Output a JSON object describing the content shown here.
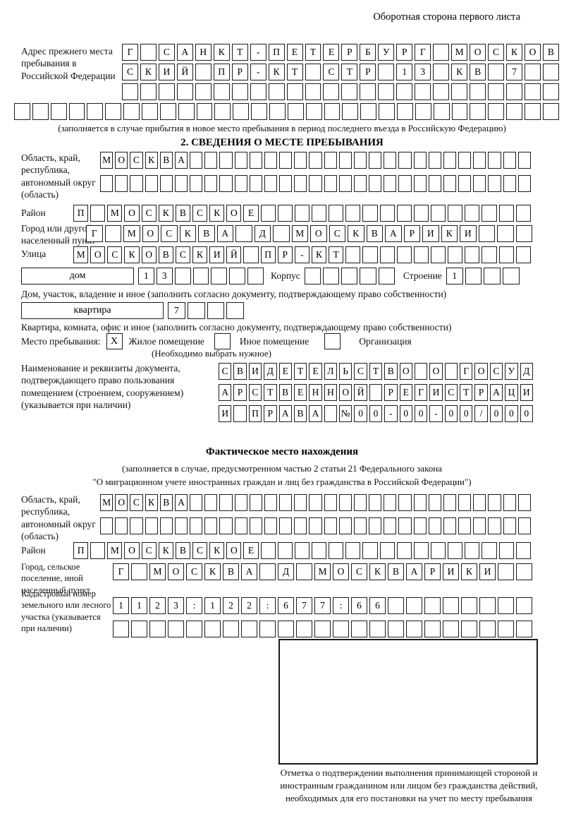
{
  "header": "Оборотная сторона первого листа",
  "prev_address": {
    "label": "Адрес прежнего места пребывания в Российской Федерации",
    "row1": [
      "Г",
      "",
      "С",
      "А",
      "Н",
      "К",
      "Т",
      "-",
      "П",
      "Е",
      "Т",
      "Е",
      "Р",
      "Б",
      "У",
      "Р",
      "Г",
      "",
      "М",
      "О",
      "С",
      "К",
      "О",
      "В"
    ],
    "row2": [
      "С",
      "К",
      "И",
      "Й",
      "",
      "П",
      "Р",
      "-",
      "К",
      "Т",
      "",
      "С",
      "Т",
      "Р",
      "",
      "1",
      "3",
      "",
      "К",
      "В",
      "",
      "7",
      "",
      ""
    ],
    "row3": 24,
    "row4": 30,
    "note": "(заполняется в случае прибытия в новое место пребывания в период последнего въезда в Российскую Федерацию)"
  },
  "section2": {
    "title": "2. СВЕДЕНИЯ О МЕСТЕ ПРЕБЫВАНИЯ",
    "region": {
      "label": "Область, край, республика, автономный округ (область)",
      "row1": [
        "М",
        "О",
        "С",
        "К",
        "В",
        "А",
        "",
        "",
        "",
        "",
        "",
        "",
        "",
        "",
        "",
        "",
        "",
        "",
        "",
        "",
        "",
        "",
        "",
        "",
        "",
        "",
        "",
        "",
        ""
      ],
      "row2": 29
    },
    "district": {
      "label": "Район",
      "row": [
        "П",
        "",
        "М",
        "О",
        "С",
        "К",
        "В",
        "С",
        "К",
        "О",
        "Е",
        "",
        "",
        "",
        "",
        "",
        "",
        "",
        "",
        "",
        "",
        "",
        "",
        "",
        "",
        "",
        ""
      ]
    },
    "city": {
      "label": "Город или другой населенный пункт",
      "row": [
        "Г",
        "",
        "М",
        "О",
        "С",
        "К",
        "В",
        "А",
        "",
        "Д",
        "",
        "М",
        "О",
        "С",
        "К",
        "В",
        "А",
        "Р",
        "И",
        "К",
        "И",
        "",
        "",
        ""
      ]
    },
    "street": {
      "label": "Улица",
      "row": [
        "М",
        "О",
        "С",
        "К",
        "О",
        "В",
        "С",
        "К",
        "И",
        "Й",
        "",
        "П",
        "Р",
        "-",
        "К",
        "Т",
        "",
        "",
        "",
        "",
        "",
        "",
        "",
        "",
        "",
        "",
        ""
      ]
    },
    "house": {
      "box_label": "дом",
      "cells": [
        "1",
        "3",
        "",
        "",
        "",
        "",
        ""
      ],
      "korpus_label": "Корпус",
      "korpus_cells": 5,
      "stroenie_label": "Строение",
      "stroenie_cells": [
        "1",
        "",
        "",
        ""
      ],
      "note": "Дом, участок, владение и иное (заполнить согласно документу, подтверждающему право собственности)"
    },
    "apartment": {
      "box_label": "квартира",
      "cells": [
        "7",
        "",
        "",
        ""
      ],
      "note": "Квартира, комната, офис и иное (заполнить согласно документу, подтверждающему право собственности)"
    },
    "stay": {
      "label": "Место пребывания:",
      "options": [
        {
          "label": "Жилое помещение",
          "checked": "X"
        },
        {
          "label": "Иное помещение",
          "checked": ""
        },
        {
          "label": "Организация",
          "checked": ""
        }
      ],
      "note": "(Необходимо выбрать нужное)"
    },
    "document": {
      "label": "Наименование и реквизиты документа, подтверждающего право пользования помещением (строением, сооружением) (указывается при наличии)",
      "row1": [
        "С",
        "В",
        "И",
        "Д",
        "Е",
        "Т",
        "Е",
        "Л",
        "Ь",
        "С",
        "Т",
        "В",
        "О",
        "",
        "О",
        "",
        "Г",
        "О",
        "С",
        "У",
        "Д"
      ],
      "row2": [
        "А",
        "Р",
        "С",
        "Т",
        "В",
        "Е",
        "Н",
        "Н",
        "О",
        "Й",
        "",
        "Р",
        "Е",
        "Г",
        "И",
        "С",
        "Т",
        "Р",
        "А",
        "Ц",
        "И"
      ],
      "row3": [
        "И",
        "",
        "П",
        "Р",
        "А",
        "В",
        "А",
        "",
        "№",
        "0",
        "0",
        "-",
        "0",
        "0",
        "-",
        "0",
        "0",
        "/",
        "0",
        "0",
        "0"
      ]
    }
  },
  "actual_location": {
    "title": "Фактическое место нахождения",
    "note1": "(заполняется в случае, предусмотренном частью 2 статьи 21 Федерального закона",
    "note2": "\"О миграционном учете иностранных граждан и лиц без гражданства в Российской Федерации\")",
    "region": {
      "label": "Область, край, республика, автономный округ (область)",
      "row1": [
        "М",
        "О",
        "С",
        "К",
        "В",
        "А",
        "",
        "",
        "",
        "",
        "",
        "",
        "",
        "",
        "",
        "",
        "",
        "",
        "",
        "",
        "",
        "",
        "",
        "",
        "",
        "",
        "",
        "",
        ""
      ],
      "row2": 29
    },
    "district": {
      "label": "Район",
      "row": [
        "П",
        "",
        "М",
        "О",
        "С",
        "К",
        "В",
        "С",
        "К",
        "О",
        "Е",
        "",
        "",
        "",
        "",
        "",
        "",
        "",
        "",
        "",
        "",
        "",
        "",
        "",
        "",
        "",
        ""
      ]
    },
    "city": {
      "label": "Город, сельское поселение, иной населенный пункт",
      "row": [
        "Г",
        "",
        "М",
        "О",
        "С",
        "К",
        "В",
        "А",
        "",
        "Д",
        "",
        "М",
        "О",
        "С",
        "К",
        "В",
        "А",
        "Р",
        "И",
        "К",
        "И",
        "",
        ""
      ]
    },
    "cadastral": {
      "label": "Кадастровый номер земельного или лесного участка (указывается при наличии)",
      "row1": [
        "1",
        "1",
        "2",
        "3",
        ":",
        "1",
        "2",
        "2",
        ":",
        "6",
        "7",
        "7",
        ":",
        "6",
        "6",
        "",
        "",
        "",
        "",
        "",
        "",
        "",
        ""
      ],
      "row2": 23
    },
    "mark_caption": "Отметка о подтверждении выполнения принимающей стороной и иностранным гражданином или лицом без гражданства действий, необходимых для его постановки на учет по месту пребывания"
  }
}
